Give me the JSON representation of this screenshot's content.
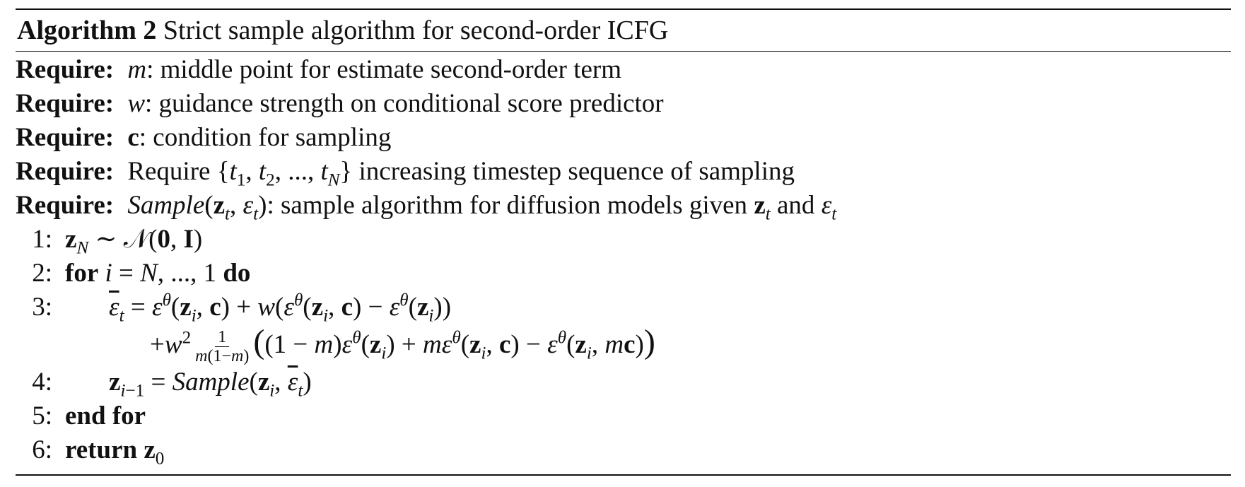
{
  "algorithm": {
    "title_label": "Algorithm 2",
    "title_text": "Strict sample algorithm for second-order ICFG",
    "require_label": "Require:",
    "requires": [
      {
        "symbol": "m",
        "text": ": middle point for estimate second-order term"
      },
      {
        "symbol": "w",
        "text": ": guidance strength on conditional score predictor"
      },
      {
        "symbol": "c",
        "text": ": condition for sampling"
      },
      {
        "symbol": "",
        "text": "Require {t₁, t₂, ..., t_N} increasing timestep sequence of sampling"
      },
      {
        "symbol": "Sample(z_t, ε_t)",
        "text": ": sample algorithm for diffusion models given z_t and ε_t"
      }
    ],
    "steps": [
      {
        "num": "1:",
        "text": "z_N ∼ 𝒩(0, I)"
      },
      {
        "num": "2:",
        "text": "for i = N, ..., 1 do"
      },
      {
        "num": "3:",
        "text": "ε̄_t = ε^θ(z_i, c) + w(ε^θ(z_i, c) − ε^θ(z_i)) + w² 1/(m(1−m)) ((1 − m)ε^θ(z_i) + mε^θ(z_i, c) − ε^θ(z_i, mc))"
      },
      {
        "num": "4:",
        "text": "z_{i−1} = Sample(z_i, ε̄_t)"
      },
      {
        "num": "5:",
        "text": "end for"
      },
      {
        "num": "6:",
        "text": "return z₀"
      }
    ]
  }
}
